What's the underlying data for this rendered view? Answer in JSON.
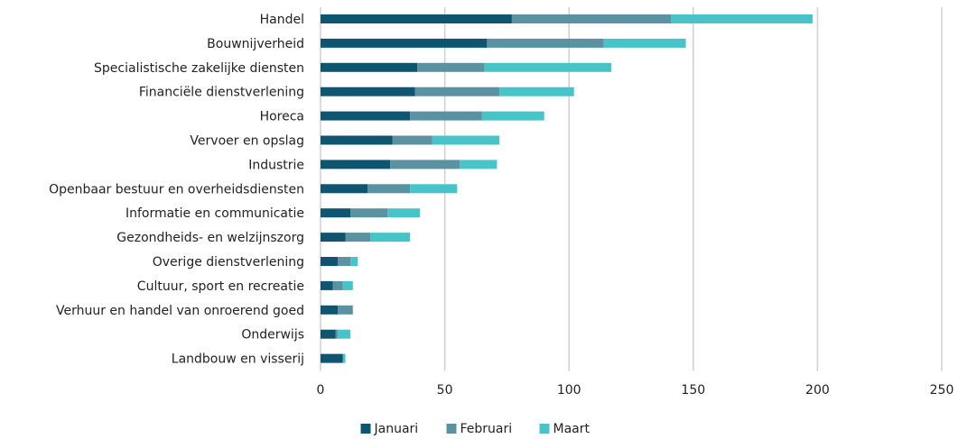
{
  "chart_data": {
    "type": "bar",
    "orientation": "horizontal",
    "stacked": true,
    "categories": [
      "Handel",
      "Bouwnijverheid",
      "Specialistische zakelijke diensten",
      "Financiële dienstverlening",
      "Horeca",
      "Vervoer en opslag",
      "Industrie",
      "Openbaar bestuur en overheidsdiensten",
      "Informatie en communicatie",
      "Gezondheids- en welzijnszorg",
      "Overige dienstverlening",
      "Cultuur, sport en recreatie",
      "Verhuur en handel van onroerend goed",
      "Onderwijs",
      "Landbouw en visserij"
    ],
    "series": [
      {
        "name": "Januari",
        "color": "#0e5670",
        "values": [
          77,
          67,
          39,
          38,
          36,
          29,
          28,
          19,
          12,
          10,
          7,
          5,
          7,
          6,
          9
        ]
      },
      {
        "name": "Februari",
        "color": "#5b92a1",
        "values": [
          64,
          47,
          27,
          34,
          29,
          16,
          28,
          17,
          15,
          10,
          5,
          4,
          6,
          1,
          0
        ]
      },
      {
        "name": "Maart",
        "color": "#48c4c9",
        "values": [
          57,
          33,
          51,
          30,
          25,
          27,
          15,
          19,
          13,
          16,
          3,
          4,
          0,
          5,
          1
        ]
      }
    ],
    "xlim": [
      0,
      250
    ],
    "xticks": [
      "0",
      "50",
      "100",
      "150",
      "200",
      "250"
    ],
    "xtick_values": [
      0,
      50,
      100,
      150,
      200,
      250
    ],
    "grid": true,
    "legend_position": "bottom"
  }
}
